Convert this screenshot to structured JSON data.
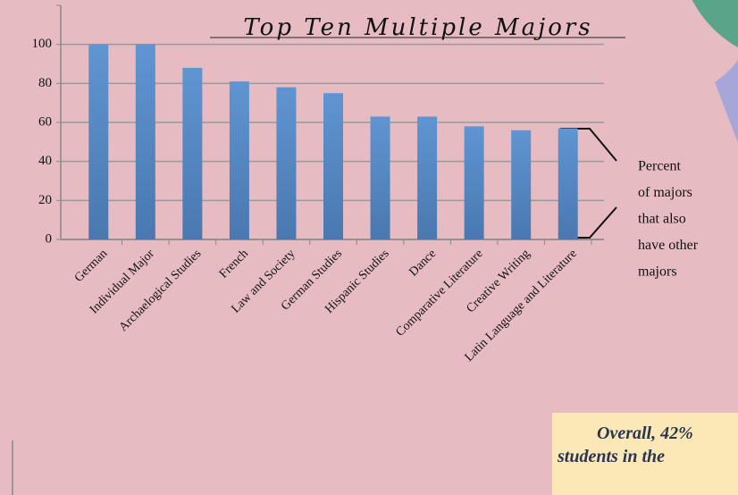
{
  "chart_data": {
    "type": "bar",
    "title": "Top Ten Multiple Majors",
    "categories": [
      "German",
      "Individual Major",
      "Archaelogical Studies",
      "French",
      "Law and Society",
      "German Studies",
      "Hispanic Studies",
      "Dance",
      "Comparative Literature",
      "Creative Writing",
      "Latin Language and Literature"
    ],
    "values": [
      100,
      100,
      88,
      81,
      78,
      75,
      63,
      63,
      58,
      56,
      57
    ],
    "color": "#5a8ccb",
    "ylim": [
      0,
      120
    ],
    "yticks": [
      0,
      20,
      40,
      60,
      80,
      100
    ],
    "grid": true,
    "annotation": [
      "Percent",
      "of majors",
      "that also",
      "have other",
      "majors"
    ]
  },
  "callout": [
    "Overall, 42%",
    "students in the"
  ]
}
